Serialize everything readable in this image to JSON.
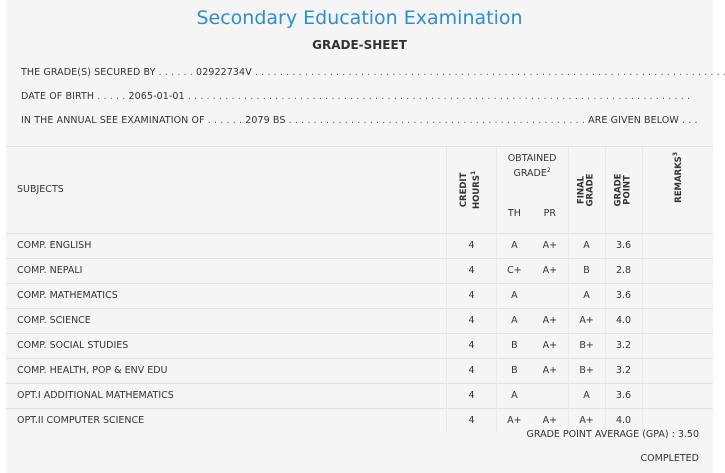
{
  "header": {
    "title": "Secondary Education Examination",
    "subtitle": "GRADE-SHEET"
  },
  "info": {
    "line1_label": "THE GRADE(S) SECURED BY",
    "line1_lead": " . . . . . . ",
    "line1_value": "02922734V",
    "line1_trail": " . . . . . . . . . . . . . . . . . . . . . . . . . . . . . . . . . . . . . . . . . . . . . . . . . . . . . . . . . . . . . . . . . . . . . . . . . . . . . . . .",
    "line2_label": "DATE OF BIRTH",
    "line2_lead": " . . . . . ",
    "line2_value": "2065-01-01",
    "line2_trail": " . . . . . . . . . . . . . . . . . . . . . . . . . . . . . . . . . . . . . . . . . . . . . . . . . . . . . . . . . . . . . . . . . . . . . . . . . . . . . . . . .",
    "line3_label": "IN THE ANNUAL SEE EXAMINATION OF",
    "line3_lead": " . . . . . . ",
    "line3_value": "2079 BS",
    "line3_trail": " . . . . . . . . . . . . . . . . . . . . . . . . . . . . . . . . . . . . . . . . . . . . . . . . ",
    "line3_end": "ARE GIVEN BELOW . . ."
  },
  "table": {
    "col_subjects": "SUBJECTS",
    "col_credit_1": "CREDIT",
    "col_credit_2": "HOURS",
    "col_credit_sup": "1",
    "col_obtained_1": "OBTAINED",
    "col_obtained_2": "GRADE",
    "col_obtained_sup": "2",
    "col_th": "TH",
    "col_pr": "PR",
    "col_final_1": "FINAL",
    "col_final_2": "GRADE",
    "col_point_1": "GRADE",
    "col_point_2": "POINT",
    "col_remarks": "REMARKS",
    "col_remarks_sup": "3",
    "rows": [
      {
        "subject": "COMP. ENGLISH",
        "credit": "4",
        "th": "A",
        "pr": "A+",
        "final": "A",
        "point": "3.6",
        "remarks": ""
      },
      {
        "subject": "COMP. NEPALI",
        "credit": "4",
        "th": "C+",
        "pr": "A+",
        "final": "B",
        "point": "2.8",
        "remarks": ""
      },
      {
        "subject": "COMP. MATHEMATICS",
        "credit": "4",
        "th": "A",
        "pr": "",
        "final": "A",
        "point": "3.6",
        "remarks": ""
      },
      {
        "subject": "COMP. SCIENCE",
        "credit": "4",
        "th": "A",
        "pr": "A+",
        "final": "A+",
        "point": "4.0",
        "remarks": ""
      },
      {
        "subject": "COMP. SOCIAL STUDIES",
        "credit": "4",
        "th": "B",
        "pr": "A+",
        "final": "B+",
        "point": "3.2",
        "remarks": ""
      },
      {
        "subject": "COMP. HEALTH, POP & ENV EDU",
        "credit": "4",
        "th": "B",
        "pr": "A+",
        "final": "B+",
        "point": "3.2",
        "remarks": ""
      },
      {
        "subject": "OPT.I ADDITIONAL MATHEMATICS",
        "credit": "4",
        "th": "A",
        "pr": "",
        "final": "A",
        "point": "3.6",
        "remarks": ""
      },
      {
        "subject": "OPT.II COMPUTER SCIENCE",
        "credit": "4",
        "th": "A+",
        "pr": "A+",
        "final": "A+",
        "point": "4.0",
        "remarks": ""
      }
    ]
  },
  "footer": {
    "gpa_label": "GRADE POINT AVERAGE (GPA) :",
    "gpa_value": "3.50",
    "status": "COMPLETED"
  },
  "colors": {
    "title": "#2b8fd6",
    "background": "#f5f5f5",
    "text": "#333333"
  }
}
